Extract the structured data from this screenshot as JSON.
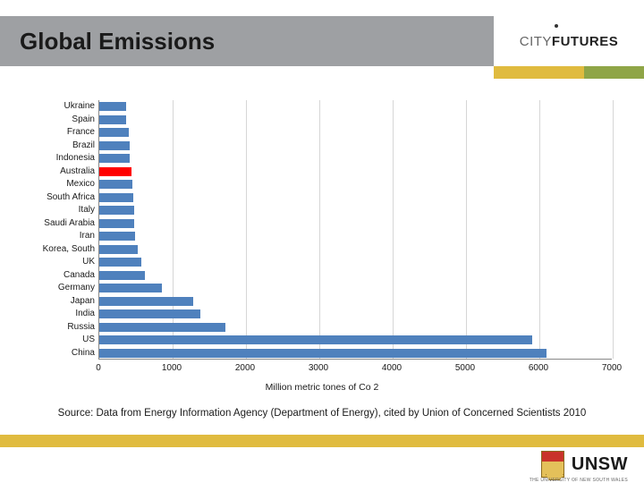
{
  "header": {
    "title": "Global Emissions",
    "logo_light": "CITY",
    "logo_bold": "FUTURES"
  },
  "accent_colors": {
    "a": "#e0bb3f",
    "b": "#8fa547"
  },
  "chart": {
    "type": "bar-horizontal",
    "xlim": [
      0,
      7000
    ],
    "xtick_step": 1000,
    "xticks": [
      "0",
      "1000",
      "2000",
      "3000",
      "4000",
      "5000",
      "6000",
      "7000"
    ],
    "xlabel": "Million metric tones of Co 2",
    "bar_color": "#4f81bd",
    "highlight_color": "#ff0000",
    "grid_color": "#d6d6d6",
    "axis_color": "#888888",
    "label_fontsize": 10,
    "categories": [
      {
        "label": "Ukraine",
        "value": 360
      },
      {
        "label": "Spain",
        "value": 370
      },
      {
        "label": "France",
        "value": 400
      },
      {
        "label": "Brazil",
        "value": 410
      },
      {
        "label": "Indonesia",
        "value": 420
      },
      {
        "label": "Australia",
        "value": 440,
        "highlight": true
      },
      {
        "label": "Mexico",
        "value": 450
      },
      {
        "label": "South Africa",
        "value": 460
      },
      {
        "label": "Italy",
        "value": 470
      },
      {
        "label": "Saudi Arabia",
        "value": 480
      },
      {
        "label": "Iran",
        "value": 490
      },
      {
        "label": "Korea, South",
        "value": 520
      },
      {
        "label": "UK",
        "value": 570
      },
      {
        "label": "Canada",
        "value": 620
      },
      {
        "label": "Germany",
        "value": 850
      },
      {
        "label": "Japan",
        "value": 1280
      },
      {
        "label": "India",
        "value": 1380
      },
      {
        "label": "Russia",
        "value": 1720
      },
      {
        "label": "US",
        "value": 5900
      },
      {
        "label": "China",
        "value": 6100
      }
    ]
  },
  "source": "Source: Data from Energy Information Agency (Department of Energy), cited by Union of Concerned Scientists 2010",
  "footer": {
    "org": "UNSW",
    "sub": "THE UNIVERSITY OF NEW SOUTH WALES"
  }
}
